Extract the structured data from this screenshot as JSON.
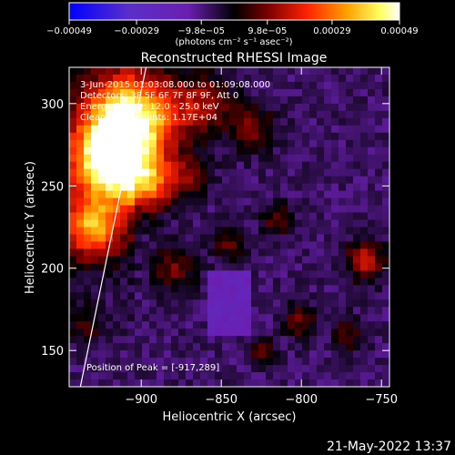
{
  "chart_data": {
    "type": "heatmap",
    "title": "Reconstructed RHESSI Image",
    "xlabel": "Heliocentric X (arcsec)",
    "ylabel": "Heliocentric Y (arcsec)",
    "xlim": [
      -945,
      -745
    ],
    "ylim": [
      128,
      322
    ],
    "x_ticks": [
      -900,
      -850,
      -800,
      -750
    ],
    "x_tick_labels": [
      "−900",
      "−850",
      "−800",
      "−750"
    ],
    "y_ticks": [
      150,
      200,
      250,
      300
    ],
    "y_tick_labels": [
      "150",
      "200",
      "250",
      "300"
    ],
    "colorbar": {
      "range": [
        -0.00049,
        0.00049
      ],
      "tick_values": [
        -0.00049,
        -0.00029,
        -9.8e-05,
        9.8e-05,
        0.00029,
        0.00049
      ],
      "tick_labels": [
        "−0.00049",
        "−0.00029",
        "−9.8e−05",
        "9.8e−05",
        "0.00029",
        "0.00049"
      ],
      "unit_label": "(photons cm⁻² s⁻¹ asec⁻²)",
      "colors": [
        "#0000ff",
        "#5a2fc8",
        "#6a1fb0",
        "#000000",
        "#7a0000",
        "#ff2200",
        "#ffa000",
        "#ffff60",
        "#ffffff"
      ]
    },
    "annotations": [
      "3-Jun-2015 01:03:08.000 to 01:09:08.000",
      "Detectors: 3F 5F 6F 7F 8F 9F, Att 0",
      "Energy Range: 12.0 - 25.0 keV",
      "Clean. Total counts: 1.17E+04"
    ],
    "peak_label": "Position of Peak = [-917,289]",
    "peak": [
      -917,
      289
    ],
    "limb_line": [
      [
        -938,
        128
      ],
      [
        -897,
        322
      ]
    ],
    "grid": false
  },
  "footer": {
    "timestamp": "21-May-2022 13:37"
  }
}
